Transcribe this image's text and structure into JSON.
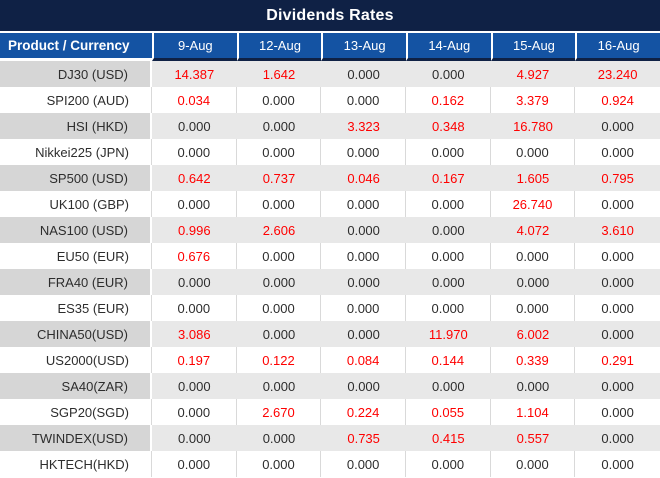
{
  "chart_data": {
    "type": "table",
    "title": "Dividends Rates",
    "columns": [
      "Product / Currency",
      "9-Aug",
      "12-Aug",
      "13-Aug",
      "14-Aug",
      "15-Aug",
      "16-Aug"
    ],
    "rows": [
      {
        "product": "DJ30 (USD)",
        "values": [
          "14.387",
          "1.642",
          "0.000",
          "0.000",
          "4.927",
          "23.240"
        ]
      },
      {
        "product": "SPI200 (AUD)",
        "values": [
          "0.034",
          "0.000",
          "0.000",
          "0.162",
          "3.379",
          "0.924"
        ]
      },
      {
        "product": "HSI (HKD)",
        "values": [
          "0.000",
          "0.000",
          "3.323",
          "0.348",
          "16.780",
          "0.000"
        ]
      },
      {
        "product": "Nikkei225 (JPN)",
        "values": [
          "0.000",
          "0.000",
          "0.000",
          "0.000",
          "0.000",
          "0.000"
        ]
      },
      {
        "product": "SP500 (USD)",
        "values": [
          "0.642",
          "0.737",
          "0.046",
          "0.167",
          "1.605",
          "0.795"
        ]
      },
      {
        "product": "UK100 (GBP)",
        "values": [
          "0.000",
          "0.000",
          "0.000",
          "0.000",
          "26.740",
          "0.000"
        ]
      },
      {
        "product": "NAS100 (USD)",
        "values": [
          "0.996",
          "2.606",
          "0.000",
          "0.000",
          "4.072",
          "3.610"
        ]
      },
      {
        "product": "EU50 (EUR)",
        "values": [
          "0.676",
          "0.000",
          "0.000",
          "0.000",
          "0.000",
          "0.000"
        ]
      },
      {
        "product": "FRA40 (EUR)",
        "values": [
          "0.000",
          "0.000",
          "0.000",
          "0.000",
          "0.000",
          "0.000"
        ]
      },
      {
        "product": "ES35 (EUR)",
        "values": [
          "0.000",
          "0.000",
          "0.000",
          "0.000",
          "0.000",
          "0.000"
        ]
      },
      {
        "product": "CHINA50(USD)",
        "values": [
          "3.086",
          "0.000",
          "0.000",
          "11.970",
          "6.002",
          "0.000"
        ]
      },
      {
        "product": "US2000(USD)",
        "values": [
          "0.197",
          "0.122",
          "0.084",
          "0.144",
          "0.339",
          "0.291"
        ]
      },
      {
        "product": "SA40(ZAR)",
        "values": [
          "0.000",
          "0.000",
          "0.000",
          "0.000",
          "0.000",
          "0.000"
        ]
      },
      {
        "product": "SGP20(SGD)",
        "values": [
          "0.000",
          "2.670",
          "0.224",
          "0.055",
          "1.104",
          "0.000"
        ]
      },
      {
        "product": "TWINDEX(USD)",
        "values": [
          "0.000",
          "0.000",
          "0.735",
          "0.415",
          "0.557",
          "0.000"
        ]
      },
      {
        "product": "HKTECH(HKD)",
        "values": [
          "0.000",
          "0.000",
          "0.000",
          "0.000",
          "0.000",
          "0.000"
        ]
      }
    ],
    "layout_hints": {
      "striped_rows": "odd rows shaded gray",
      "positive_values_colored_red": true,
      "zero_values_colored_dark": true
    }
  },
  "colors": {
    "title_bg": "#0f2145",
    "header_bg": "#1453a3",
    "stripe_product_bg": "#d6d6d6",
    "stripe_data_bg": "#e8e8e8",
    "grid_line": "#d9d9d9",
    "value_positive": "#ff0000",
    "value_zero": "#2d2d2d"
  }
}
